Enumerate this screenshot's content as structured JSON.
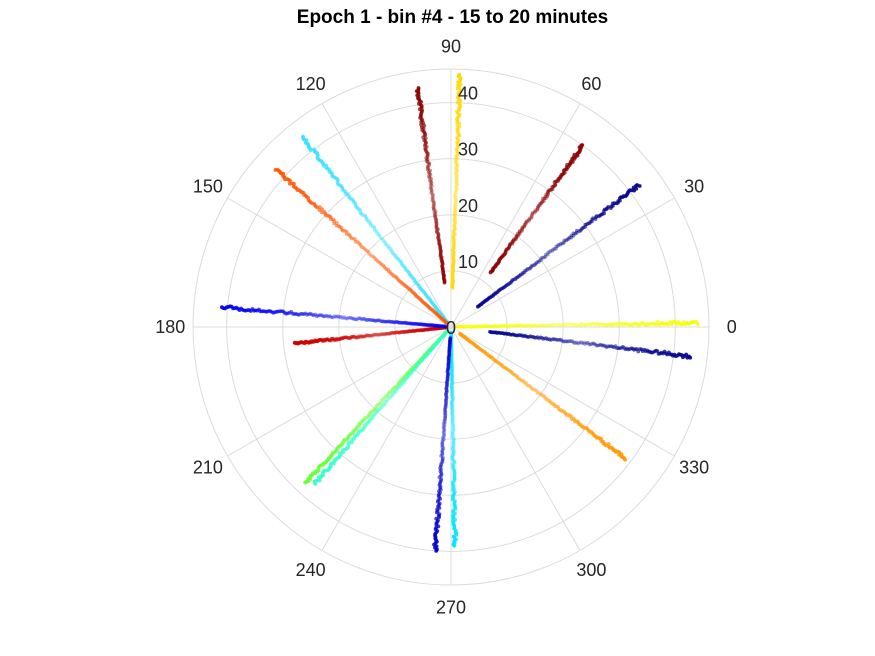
{
  "chart_data": {
    "type": "scatter",
    "projection": "polar",
    "title": "Epoch 1 - bin #4 - 15 to 20 minutes",
    "r_range": [
      0,
      46
    ],
    "r_ticks": [
      10,
      20,
      30,
      40
    ],
    "r_tick_labels": [
      "10",
      "20",
      "30",
      "40"
    ],
    "center_label": "0",
    "theta_ticks": [
      0,
      30,
      60,
      90,
      120,
      150,
      180,
      210,
      240,
      270,
      300,
      330
    ],
    "theta_tick_labels": [
      "0",
      "30",
      "60",
      "90",
      "120",
      "150",
      "180",
      "210",
      "240",
      "270",
      "300",
      "330"
    ],
    "grid": true,
    "series": [
      {
        "theta": 88,
        "r_min": 7,
        "r_max": 45,
        "color": "#ffd700"
      },
      {
        "theta": 98,
        "r_min": 8,
        "r_max": 43,
        "color": "#8b0000"
      },
      {
        "theta": 54,
        "r_min": 12,
        "r_max": 40,
        "color": "#8b0000"
      },
      {
        "theta": 37,
        "r_min": 6,
        "r_max": 42,
        "color": "#00008b"
      },
      {
        "theta": 1,
        "r_min": 1,
        "r_max": 44,
        "color": "#f5ff00"
      },
      {
        "theta": 353,
        "r_min": 7,
        "r_max": 43,
        "color": "#00008b"
      },
      {
        "theta": 323,
        "r_min": 2,
        "r_max": 39,
        "color": "#ff9900"
      },
      {
        "theta": 271,
        "r_min": 1,
        "r_max": 39,
        "color": "#00e5ff"
      },
      {
        "theta": 266,
        "r_min": 2,
        "r_max": 40,
        "color": "#0000cc"
      },
      {
        "theta": 227,
        "r_min": 1,
        "r_max": 38,
        "color": "#66ff33"
      },
      {
        "theta": 229,
        "r_min": 1,
        "r_max": 37,
        "color": "#33ffcc"
      },
      {
        "theta": 186,
        "r_min": 1,
        "r_max": 28,
        "color": "#cc0000"
      },
      {
        "theta": 175,
        "r_min": 1,
        "r_max": 41,
        "color": "#0000ee"
      },
      {
        "theta": 128,
        "r_min": 1,
        "r_max": 43,
        "color": "#33e0ff"
      },
      {
        "theta": 138,
        "r_min": 1,
        "r_max": 42,
        "color": "#ff5500"
      }
    ]
  }
}
